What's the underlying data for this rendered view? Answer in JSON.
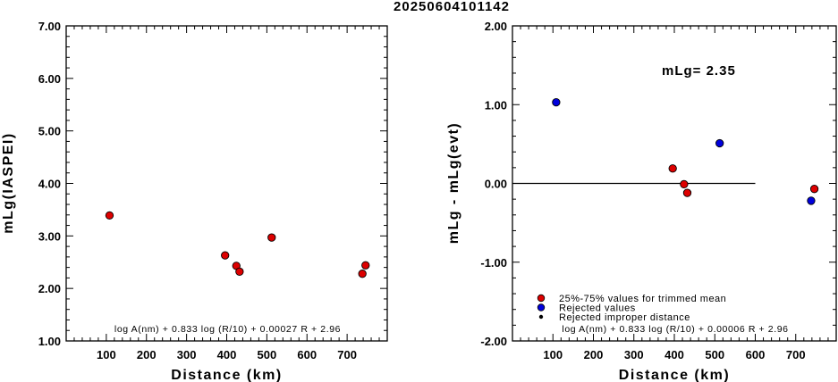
{
  "title": "20250604101142",
  "chart_data": [
    {
      "type": "scatter",
      "xlabel": "Distance (km)",
      "ylabel": "mLg(IASPEI)",
      "xlim": [
        0,
        800
      ],
      "ylim": [
        1.0,
        7.0
      ],
      "x_ticks": [
        "100",
        "200",
        "300",
        "400",
        "500",
        "600",
        "700"
      ],
      "y_ticks": [
        "1.00",
        "2.00",
        "3.00",
        "4.00",
        "5.00",
        "6.00",
        "7.00"
      ],
      "formula": "log A(nm) + 0.833 log (R/10) + 0.00027 R + 2.96",
      "points": [
        {
          "x": 108,
          "y": 3.39,
          "class": "trimmed"
        },
        {
          "x": 396,
          "y": 2.63,
          "class": "trimmed"
        },
        {
          "x": 424,
          "y": 2.43,
          "class": "trimmed"
        },
        {
          "x": 432,
          "y": 2.32,
          "class": "trimmed"
        },
        {
          "x": 512,
          "y": 2.97,
          "class": "trimmed"
        },
        {
          "x": 738,
          "y": 2.28,
          "class": "trimmed"
        },
        {
          "x": 746,
          "y": 2.44,
          "class": "trimmed"
        }
      ]
    },
    {
      "type": "scatter",
      "xlabel": "Distance (km)",
      "ylabel": "mLg - mLg(evt)",
      "xlim": [
        0,
        800
      ],
      "ylim": [
        -2.0,
        2.0
      ],
      "x_ticks": [
        "100",
        "200",
        "300",
        "400",
        "500",
        "600",
        "700"
      ],
      "y_ticks": [
        "-2.00",
        "-1.00",
        "0.00",
        "1.00",
        "2.00"
      ],
      "annotation": "mLg= 2.35",
      "formula": "log A(nm) + 0.833 log (R/10) + 0.00006 R  + 2.96",
      "reference_line": {
        "y": 0.0,
        "x_from": 0,
        "x_to": 600
      },
      "legend": [
        {
          "label": "25%-75% values for trimmed mean",
          "color": "#dd0000",
          "marker": "circle"
        },
        {
          "label": "Rejected values",
          "color": "#0000dd",
          "marker": "circle"
        },
        {
          "label": "Rejected improper distance",
          "color": "#000000",
          "marker": "dot"
        }
      ],
      "points": [
        {
          "x": 108,
          "y": 1.03,
          "class": "rejected"
        },
        {
          "x": 396,
          "y": 0.19,
          "class": "trimmed"
        },
        {
          "x": 424,
          "y": -0.01,
          "class": "trimmed"
        },
        {
          "x": 432,
          "y": -0.12,
          "class": "trimmed"
        },
        {
          "x": 512,
          "y": 0.51,
          "class": "rejected"
        },
        {
          "x": 738,
          "y": -0.22,
          "class": "rejected"
        },
        {
          "x": 746,
          "y": -0.07,
          "class": "trimmed"
        }
      ]
    }
  ]
}
